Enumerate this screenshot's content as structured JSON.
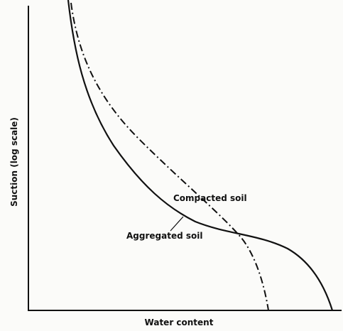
{
  "figure": {
    "y_axis_label": "Suction (log scale)",
    "x_axis_label": "Water content",
    "curves": [
      {
        "label": "Compacted soil"
      },
      {
        "label": "Aggregated soil"
      }
    ]
  }
}
